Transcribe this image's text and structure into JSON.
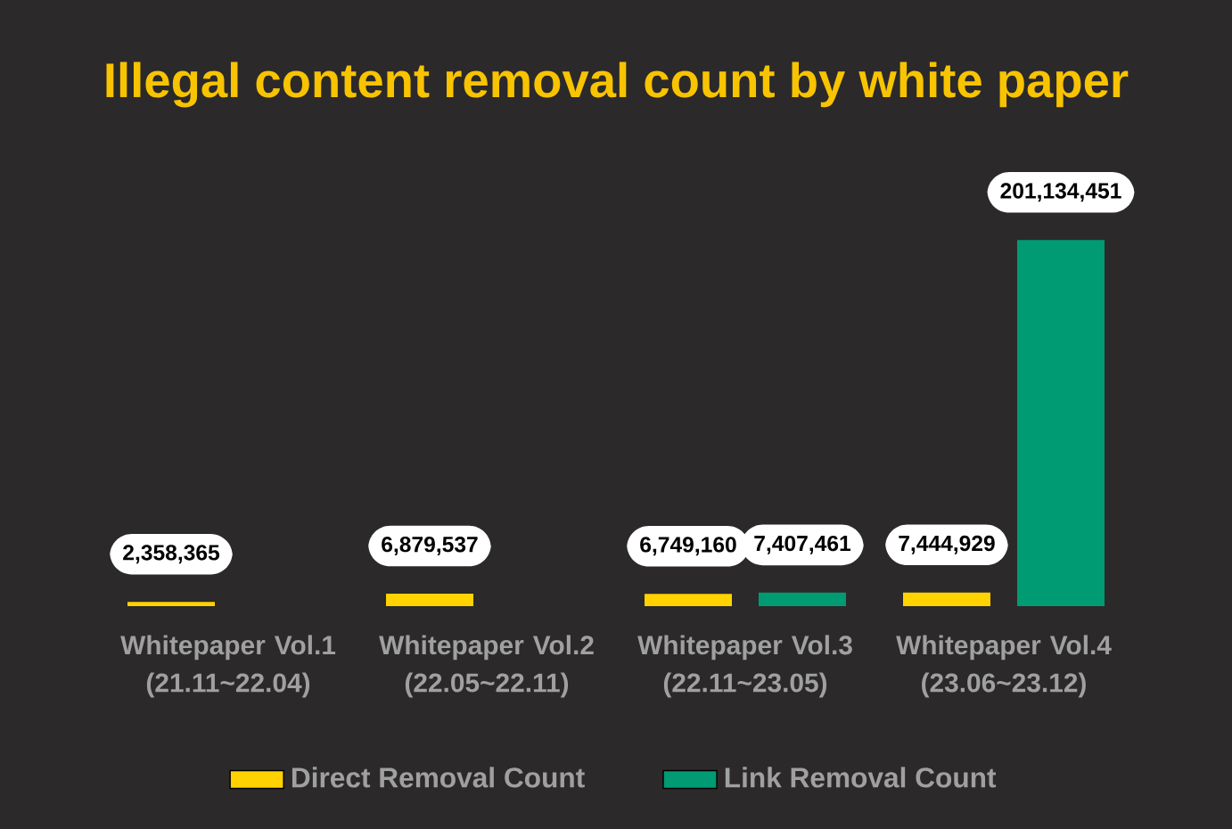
{
  "chart_data": {
    "type": "bar",
    "title": "Illegal content removal count by white paper",
    "categories": [
      "Whitepaper Vol.1 (21.11~22.04)",
      "Whitepaper Vol.2 (22.05~22.11)",
      "Whitepaper Vol.3 (22.11~23.05)",
      "Whitepaper Vol.4 (23.06~23.12)"
    ],
    "series": [
      {
        "name": "Direct Removal Count",
        "color": "#ffd200",
        "values": [
          2358365,
          6879537,
          6749160,
          7444929
        ],
        "value_labels": [
          "2,358,365",
          "6,879,537",
          "6,749,160",
          "7,444,929"
        ]
      },
      {
        "name": "Link Removal Count",
        "color": "#009b72",
        "values": [
          null,
          null,
          7407461,
          201134451
        ],
        "value_labels": [
          null,
          null,
          "7,407,461",
          "201,134,451"
        ]
      }
    ],
    "legend": "bottom"
  }
}
